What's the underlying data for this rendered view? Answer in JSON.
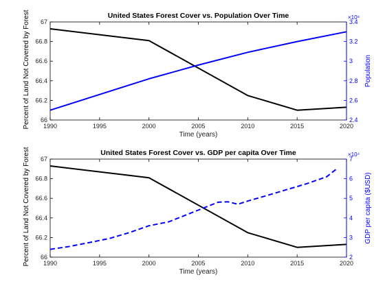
{
  "chart_data": [
    {
      "type": "line",
      "title": "United States Forest Cover vs. Population Over Time",
      "xlabel": "Time (years)",
      "xlim": [
        1990,
        2020
      ],
      "x_ticks": [
        "1990",
        "1995",
        "2000",
        "2005",
        "2010",
        "2015",
        "2020"
      ],
      "left_axis": {
        "label": "Percent of Land Not Covered by Forest",
        "lim": [
          66,
          67
        ],
        "ticks": [
          "66",
          "66.2",
          "66.4",
          "66.6",
          "66.8",
          "67"
        ],
        "color": "#000000"
      },
      "right_axis": {
        "label": "Population",
        "lim": [
          2.4,
          3.4
        ],
        "ticks": [
          "2.4",
          "2.6",
          "2.8",
          "3",
          "3.2",
          "3.4"
        ],
        "exponent": "×10⁸",
        "color": "#0000ff"
      },
      "series": [
        {
          "axis": "left",
          "style": "solid",
          "color": "#000000",
          "x": [
            1990,
            2000,
            2010,
            2015,
            2020
          ],
          "y": [
            66.93,
            66.81,
            66.25,
            66.1,
            66.13
          ]
        },
        {
          "axis": "right",
          "style": "solid",
          "color": "#0000ff",
          "x": [
            1990,
            1995,
            2000,
            2005,
            2010,
            2015,
            2020
          ],
          "y": [
            2.5,
            2.66,
            2.82,
            2.96,
            3.09,
            3.2,
            3.3
          ]
        }
      ]
    },
    {
      "type": "line",
      "title": "United States Forest Cover vs. GDP per capita Over Time",
      "xlabel": "Time (years)",
      "xlim": [
        1990,
        2020
      ],
      "x_ticks": [
        "1990",
        "1995",
        "2000",
        "2005",
        "2010",
        "2015",
        "2020"
      ],
      "left_axis": {
        "label": "Percent of Land Not Covered by Forest",
        "lim": [
          66,
          67
        ],
        "ticks": [
          "66",
          "66.2",
          "66.4",
          "66.6",
          "66.8",
          "67"
        ],
        "color": "#000000"
      },
      "right_axis": {
        "label": "GDP per capita ($USD)",
        "lim": [
          2,
          7
        ],
        "ticks": [
          "2",
          "3",
          "4",
          "5",
          "6",
          "7"
        ],
        "exponent": "×10⁴",
        "color": "#0000ff"
      },
      "series": [
        {
          "axis": "left",
          "style": "solid",
          "color": "#000000",
          "x": [
            1990,
            2000,
            2010,
            2015,
            2020
          ],
          "y": [
            66.93,
            66.81,
            66.25,
            66.1,
            66.13
          ]
        },
        {
          "axis": "right",
          "style": "dashed",
          "color": "#0000ff",
          "x": [
            1990,
            1992,
            1994,
            1996,
            1998,
            2000,
            2002,
            2004,
            2006,
            2007,
            2008,
            2009,
            2010,
            2012,
            2014,
            2016,
            2018,
            2019
          ],
          "y": [
            2.4,
            2.55,
            2.75,
            2.95,
            3.25,
            3.6,
            3.8,
            4.2,
            4.6,
            4.8,
            4.82,
            4.7,
            4.86,
            5.15,
            5.45,
            5.75,
            6.1,
            6.5
          ]
        }
      ]
    }
  ]
}
